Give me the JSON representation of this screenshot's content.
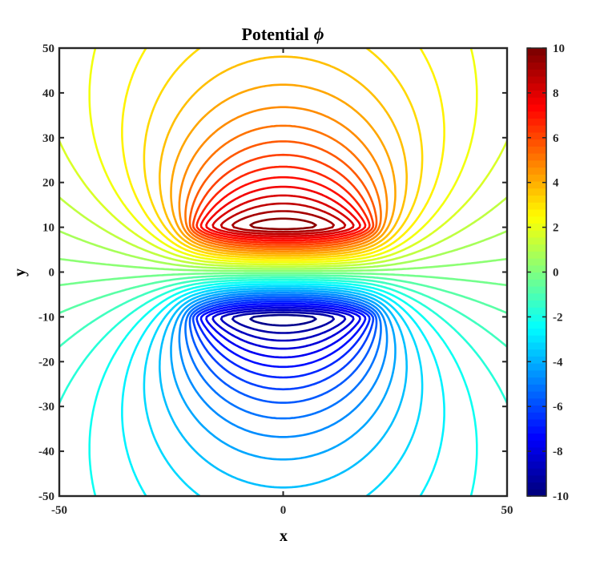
{
  "chart_data": {
    "type": "contour",
    "title": "Potential",
    "title_symbol": "ϕ",
    "xlabel": "x",
    "ylabel": "y",
    "xlim": [
      -50,
      50
    ],
    "ylim": [
      -50,
      50
    ],
    "xticks": [
      -50,
      0,
      50
    ],
    "yticks": [
      50,
      40,
      30,
      20,
      10,
      0,
      -10,
      -20,
      -30,
      -40,
      -50
    ],
    "colorbar": {
      "colormap": "jet",
      "range": [
        -10,
        10
      ],
      "ticks": [
        10,
        8,
        6,
        4,
        2,
        0,
        -2,
        -4,
        -6,
        -8,
        -10
      ]
    },
    "sources": [
      {
        "type": "plate",
        "y": 10,
        "x_range": [
          -20,
          20
        ],
        "potential": 10
      },
      {
        "type": "plate",
        "y": -10,
        "x_range": [
          -20,
          20
        ],
        "potential": -10
      }
    ],
    "grid": false,
    "box": true
  }
}
